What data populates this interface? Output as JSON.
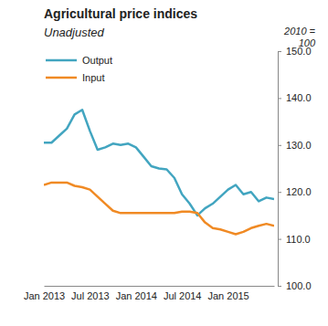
{
  "chart_data": {
    "type": "line",
    "title": "Agricultural price indices",
    "subtitle": "Unadjusted",
    "y_label": [
      "2010 =",
      "100"
    ],
    "categories": [
      "Jan 2013",
      null,
      null,
      null,
      null,
      null,
      "Jul 2013",
      null,
      null,
      null,
      null,
      null,
      "Jan 2014",
      null,
      null,
      null,
      null,
      null,
      "Jul 2014",
      null,
      null,
      null,
      null,
      null,
      "Jan 2015",
      null,
      null,
      null,
      null,
      null,
      null
    ],
    "series": [
      {
        "name": "Output",
        "color": "#42a5c0",
        "values": [
          130.5,
          130.5,
          132,
          133.5,
          136.5,
          137.5,
          133,
          129,
          129.5,
          130.3,
          130,
          130.3,
          129.5,
          127.5,
          125.5,
          125,
          124.8,
          123,
          119.5,
          117.5,
          115,
          116.5,
          117.5,
          119,
          120.5,
          121.5,
          119.5,
          120,
          118,
          118.8,
          118.5
        ]
      },
      {
        "name": "Input",
        "color": "#f08a24",
        "values": [
          121.5,
          122,
          122,
          122,
          121.3,
          121,
          120.5,
          119,
          117.5,
          116,
          115.5,
          115.5,
          115.5,
          115.5,
          115.5,
          115.5,
          115.5,
          115.5,
          115.8,
          115.8,
          115.5,
          113.5,
          112.3,
          112,
          111.5,
          111,
          111.5,
          112.3,
          112.8,
          113.2,
          112.8
        ]
      }
    ],
    "ylim": [
      100,
      150
    ],
    "yticks": [
      {
        "value": 100,
        "label": "100.0"
      },
      {
        "value": 110,
        "label": "110.0"
      },
      {
        "value": 120,
        "label": "120.0"
      },
      {
        "value": 130,
        "label": "130.0"
      },
      {
        "value": 140,
        "label": "140.0"
      },
      {
        "value": 150,
        "label": "150.0"
      }
    ],
    "grid": false,
    "legend": "upper left"
  }
}
